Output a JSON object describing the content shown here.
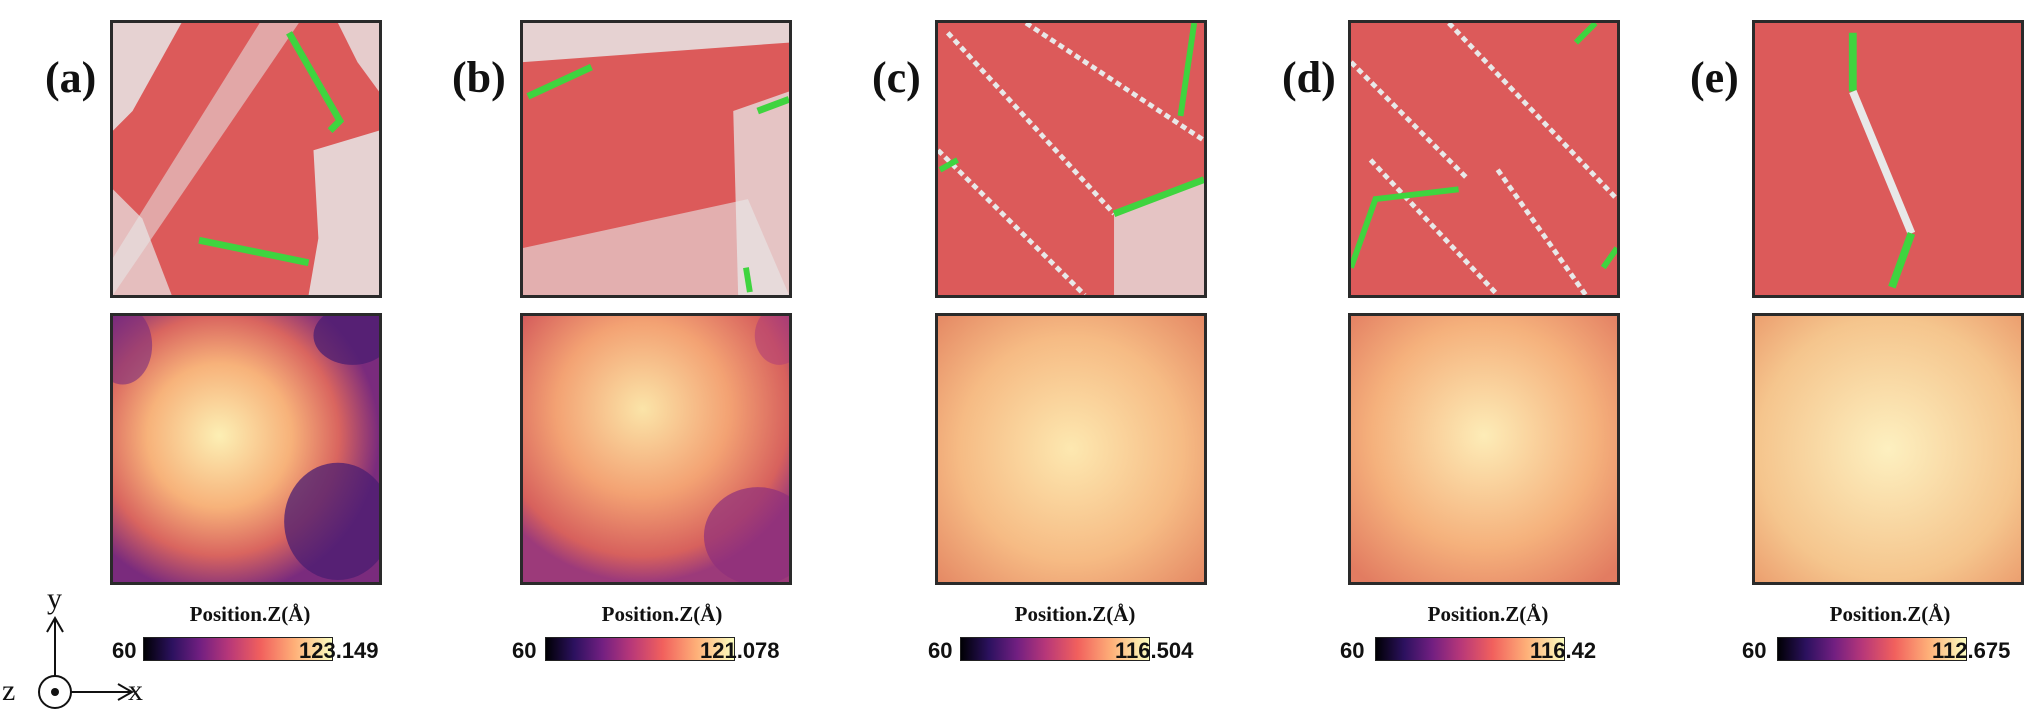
{
  "panels": [
    {
      "label": "(a)",
      "colorbar": {
        "title": "Position.Z(Å)",
        "min": "60",
        "max": "123.149"
      }
    },
    {
      "label": "(b)",
      "colorbar": {
        "title": "Position.Z(Å)",
        "min": "60",
        "max": "121.078"
      }
    },
    {
      "label": "(c)",
      "colorbar": {
        "title": "Position.Z(Å)",
        "min": "60",
        "max": "116.504"
      }
    },
    {
      "label": "(d)",
      "colorbar": {
        "title": "Position.Z(Å)",
        "min": "60",
        "max": "116.42"
      }
    },
    {
      "label": "(e)",
      "colorbar": {
        "title": "Position.Z(Å)",
        "min": "60",
        "max": "112.675"
      }
    }
  ],
  "axes": {
    "x": "x",
    "y": "y",
    "z": "z"
  },
  "colors": {
    "fcc_red": "#dc5a5a",
    "hcp_white": "#e8e8e8",
    "bcc_green": "#3fd43f",
    "border": "#2a2a2a"
  }
}
